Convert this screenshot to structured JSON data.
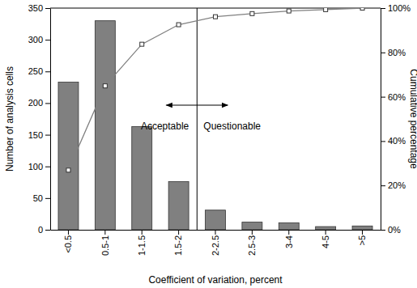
{
  "chart_data": {
    "type": "bar",
    "x_label": "Coefficient of variation, percent",
    "y_label": "Number of analysis cells",
    "y2_label": "Cumulative percentage",
    "annotations": [
      "Acceptable",
      "Questionable"
    ],
    "categories": [
      "<0.5",
      "0.5-1",
      "1-1.5",
      "1.5-2",
      "2-2.5",
      "2.5-3",
      "3-4",
      "4-5",
      ">5"
    ],
    "series": [
      {
        "type": "bar",
        "color": "#808080",
        "values": [
          233,
          330,
          163,
          76,
          31,
          12,
          11,
          5,
          6
        ]
      },
      {
        "type": "line",
        "axis": "y2",
        "color": "#808080",
        "marker": "square",
        "line_style": "solid",
        "values": [
          26.9,
          64.9,
          83.7,
          92.5,
          96.1,
          97.5,
          98.7,
          99.3,
          100
        ]
      }
    ],
    "ylim": [
      0,
      350
    ],
    "yticks": [
      0,
      50,
      100,
      150,
      200,
      250,
      300,
      350
    ],
    "y2lim": [
      0,
      100
    ],
    "y2ticks": [
      {
        "value": 0,
        "label": "0%"
      },
      {
        "value": 20,
        "label": "20%"
      },
      {
        "value": 40,
        "label": "40%"
      },
      {
        "value": 60,
        "label": "60%"
      },
      {
        "value": 80,
        "label": "80%"
      },
      {
        "value": 100,
        "label": "100%"
      }
    ],
    "grid": false
  }
}
